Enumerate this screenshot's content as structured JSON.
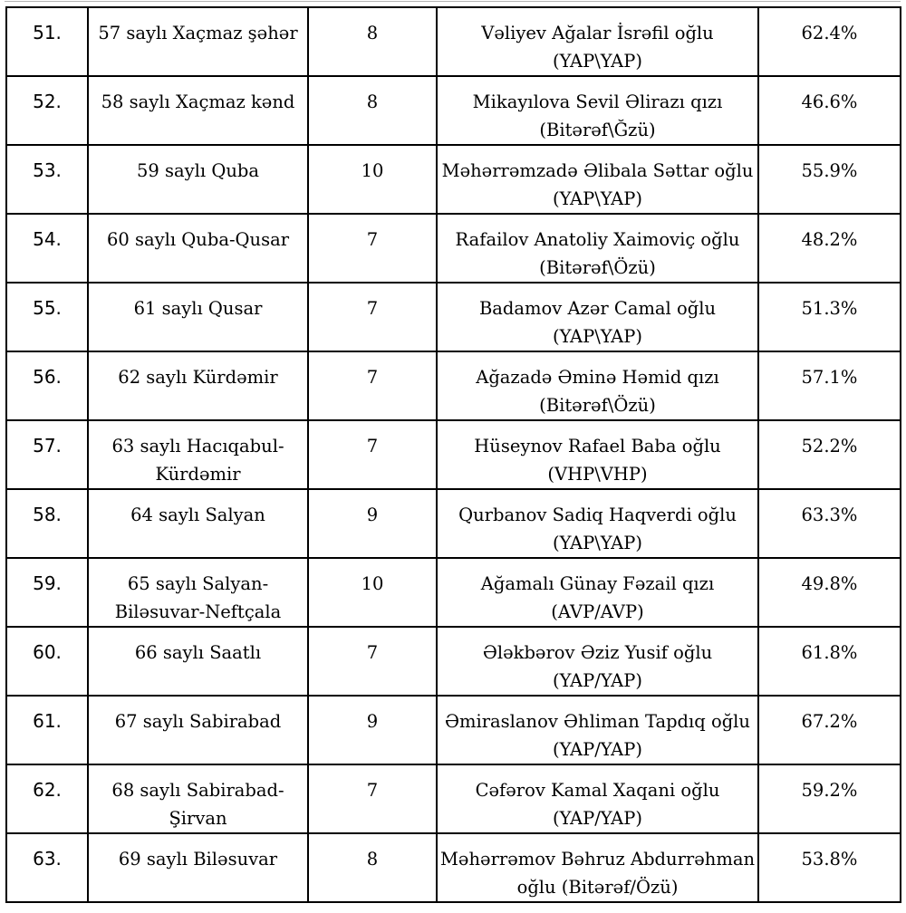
{
  "page": {
    "background_color": "#ffffff",
    "border_color": "#000000",
    "text_color": "#000000"
  },
  "table": {
    "rows": [
      {
        "num": "51.",
        "district_lines": [
          "57 saylı Xaçmaz şəhər"
        ],
        "seats": "8",
        "candidate_lines": [
          "Vəliyev Ağalar İsrəfil oğlu",
          "(YAP\\YAP)"
        ],
        "percent": "62.4%"
      },
      {
        "num": "52.",
        "district_lines": [
          "58 saylı Xaçmaz kənd"
        ],
        "seats": "8",
        "candidate_lines": [
          "Mikayılova Sevil Əlirazı qızı",
          "(Bitərəf\\Ğzü)"
        ],
        "percent": "46.6%"
      },
      {
        "num": "53.",
        "district_lines": [
          "59 saylı Quba"
        ],
        "seats": "10",
        "candidate_lines": [
          "Məhərrəmzadə Əlibala Səttar oğlu",
          "(YAP\\YAP)"
        ],
        "percent": "55.9%"
      },
      {
        "num": "54.",
        "district_lines": [
          "60 saylı Quba-Qusar"
        ],
        "seats": "7",
        "candidate_lines": [
          "Rafailov Anatoliy Xaimoviç oğlu",
          "(Bitərəf\\Özü)"
        ],
        "percent": "48.2%"
      },
      {
        "num": "55.",
        "district_lines": [
          "61 saylı Qusar"
        ],
        "seats": "7",
        "candidate_lines": [
          "Badamov Azər Camal oğlu",
          "(YAP\\YAP)"
        ],
        "percent": "51.3%"
      },
      {
        "num": "56.",
        "district_lines": [
          "62 saylı Kürdəmir"
        ],
        "seats": "7",
        "candidate_lines": [
          "Ağazadə Əminə Həmid qızı",
          "(Bitərəf\\Özü)"
        ],
        "percent": "57.1%"
      },
      {
        "num": "57.",
        "district_lines": [
          "63 saylı Hacıqabul-",
          "Kürdəmir"
        ],
        "seats": "7",
        "candidate_lines": [
          "Hüseynov Rafael Baba oğlu",
          "(VHP\\VHP)"
        ],
        "percent": "52.2%"
      },
      {
        "num": "58.",
        "district_lines": [
          "64 saylı Salyan"
        ],
        "seats": "9",
        "candidate_lines": [
          "Qurbanov Sadiq Haqverdi oğlu",
          "(YAP\\YAP)"
        ],
        "percent": "63.3%"
      },
      {
        "num": "59.",
        "district_lines": [
          "65 saylı Salyan-",
          "Biləsuvar-Neftçala"
        ],
        "seats": "10",
        "candidate_lines": [
          "Ağamalı Günay Fəzail qızı",
          "(AVP/AVP)"
        ],
        "percent": "49.8%"
      },
      {
        "num": "60.",
        "district_lines": [
          "66 saylı Saatlı"
        ],
        "seats": "7",
        "candidate_lines": [
          "Ələkbərov Əziz Yusif oğlu",
          "(YAP/YAP)"
        ],
        "percent": "61.8%"
      },
      {
        "num": "61.",
        "district_lines": [
          "67 saylı Sabirabad"
        ],
        "seats": "9",
        "candidate_lines": [
          "Əmiraslanov Əhliman Tapdıq oğlu",
          "(YAP/YAP)"
        ],
        "percent": "67.2%"
      },
      {
        "num": "62.",
        "district_lines": [
          "68 saylı Sabirabad-",
          "Şirvan"
        ],
        "seats": "7",
        "candidate_lines": [
          "Cəfərov Kamal Xaqani oğlu",
          "(YAP/YAP)"
        ],
        "percent": "59.2%"
      },
      {
        "num": "63.",
        "district_lines": [
          "69 saylı Biləsuvar"
        ],
        "seats": "8",
        "candidate_lines": [
          "Məhərrəmov Bəhruz Abdurrəhman",
          "oğlu (Bitərəf/Özü)"
        ],
        "percent": "53.8%"
      }
    ]
  }
}
